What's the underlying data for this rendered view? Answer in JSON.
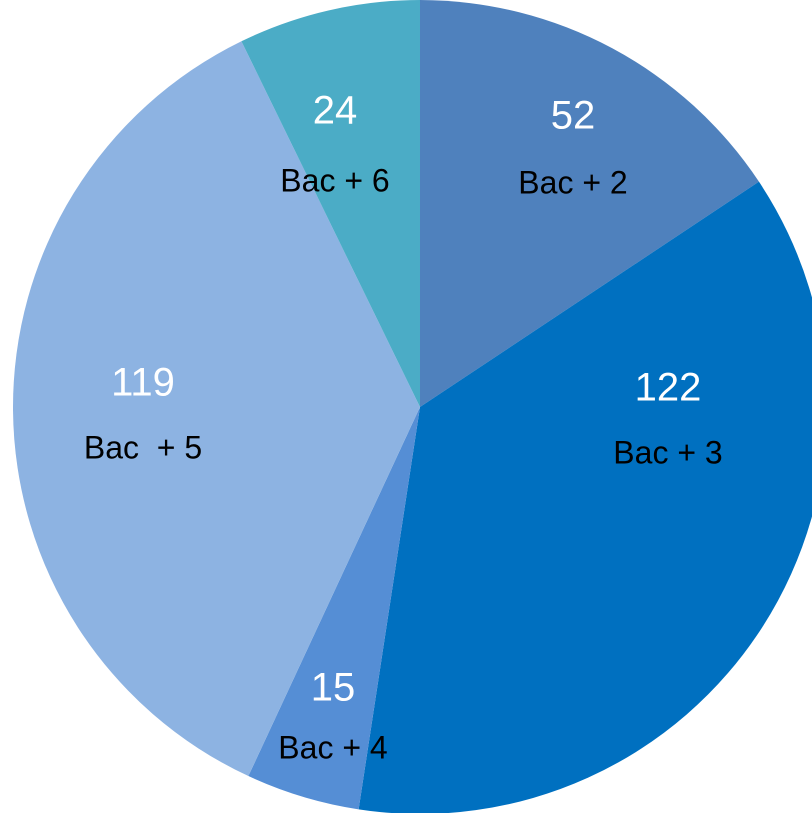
{
  "chart_data": {
    "type": "pie",
    "categories": [
      "Bac + 2",
      "Bac + 3",
      "Bac + 4",
      "Bac  + 5",
      "Bac + 6"
    ],
    "values": [
      52,
      122,
      15,
      119,
      24
    ],
    "colors": [
      "#4f81bd",
      "#0070c0",
      "#558ed5",
      "#8db3e2",
      "#4bacc6"
    ]
  }
}
